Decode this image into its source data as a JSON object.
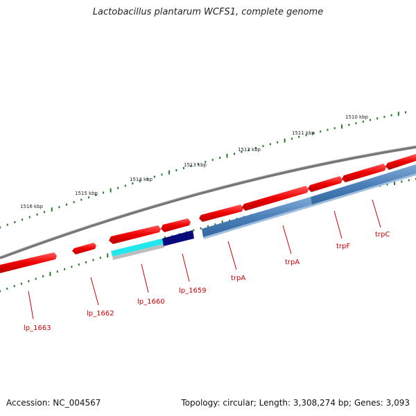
{
  "title": "Lactobacillus plantarum WCFS1, complete genome",
  "footer": {
    "accession": "Accession: NC_004567",
    "summary": "Topology: circular; Length: 3,308,274 bp; Genes: 3,093"
  },
  "colors": {
    "forward_cds": "#ee0000",
    "reverse_cds": "#4a7fb8",
    "highlight_cyan": "#22e8ee",
    "highlight_navy": "#0a0a7a",
    "backbone": "#888888",
    "tick": "#2a7a2a",
    "label": "#cc0000"
  },
  "scale": {
    "unit": "kbp",
    "ticks": [
      {
        "value": 1510,
        "label": "1510 kbp"
      },
      {
        "value": 1511,
        "label": "1511 kbp"
      },
      {
        "value": 1512,
        "label": "1512 kbp"
      },
      {
        "value": 1513,
        "label": "1513 kbp"
      },
      {
        "value": 1514,
        "label": "1514 kbp"
      },
      {
        "value": 1515,
        "label": "1515 kbp"
      },
      {
        "value": 1516,
        "label": "1516 kbp"
      }
    ]
  },
  "gene_labels": [
    {
      "name": "lp_1663"
    },
    {
      "name": "lp_1662"
    },
    {
      "name": "lp_1660"
    },
    {
      "name": "lp_1659"
    },
    {
      "name": "trpA"
    },
    {
      "name": "trpA"
    },
    {
      "name": "trpF"
    },
    {
      "name": "trpC"
    }
  ]
}
